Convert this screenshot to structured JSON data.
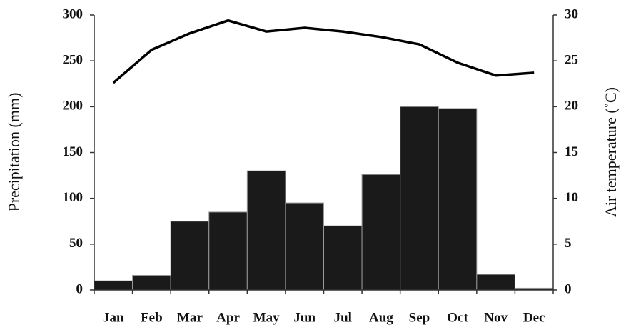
{
  "chart_data": {
    "type": "combo",
    "y_label": "Precipitation (mm)",
    "y2_label": "Air temperature (˚C)",
    "categories": [
      "Jan",
      "Feb",
      "Mar",
      "Apr",
      "May",
      "Jun",
      "Jul",
      "Aug",
      "Sep",
      "Oct",
      "Nov",
      "Dec"
    ],
    "series": [
      {
        "type": "bar",
        "color": "#1a1a1a",
        "axis": "y",
        "values": [
          10,
          16,
          75,
          85,
          130,
          95,
          70,
          126,
          200,
          198,
          17,
          2
        ]
      },
      {
        "type": "line",
        "color": "#000000",
        "axis": "y2",
        "values": [
          22.6,
          26.2,
          28.0,
          29.4,
          28.2,
          28.6,
          28.2,
          27.6,
          26.8,
          24.8,
          23.4,
          23.7
        ]
      }
    ],
    "ylim": [
      0,
      300
    ],
    "yticks": [
      0,
      50,
      100,
      150,
      200,
      250,
      300
    ],
    "y2lim": [
      0,
      30
    ],
    "y2ticks": [
      0,
      5,
      10,
      15,
      20,
      25,
      30
    ],
    "grid": false
  }
}
